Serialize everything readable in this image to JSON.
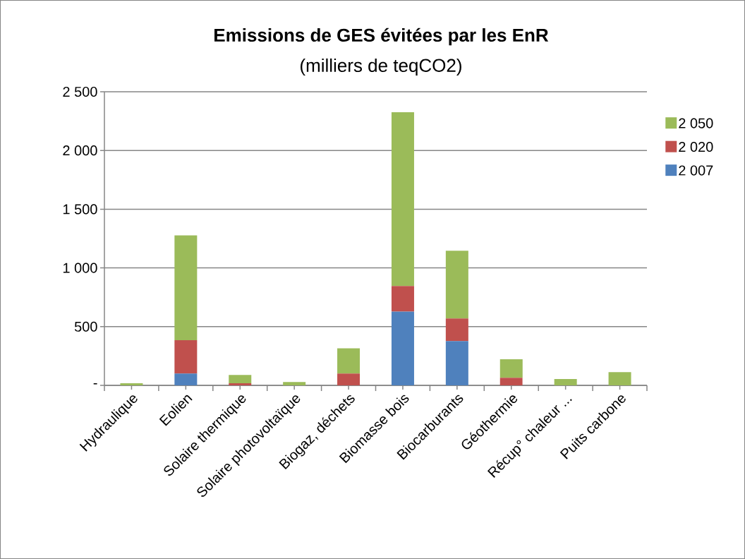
{
  "chart_data": {
    "type": "bar",
    "stacked": true,
    "title": "Emissions de GES évitées par les EnR",
    "subtitle": "(milliers de teqCO2)",
    "categories": [
      "Hydraulique",
      "Eolien",
      "Solaire thermique",
      "Solaire photovoltaïque",
      "Biogaz, déchets",
      "Biomasse bois",
      "Biocarburants",
      "Géothermie",
      "Récup° chaleur ...",
      "Puits carbone"
    ],
    "series": [
      {
        "name": "2 007",
        "color": "#4f81bd",
        "values": [
          0,
          100,
          0,
          0,
          0,
          628,
          377,
          0,
          0,
          0
        ]
      },
      {
        "name": "2 020",
        "color": "#c0504d",
        "values": [
          0,
          285,
          18,
          0,
          100,
          218,
          192,
          64,
          0,
          0
        ]
      },
      {
        "name": "2 050",
        "color": "#9bbb59",
        "values": [
          18,
          892,
          70,
          28,
          216,
          1480,
          578,
          158,
          54,
          112
        ]
      }
    ],
    "ylim": [
      0,
      2500
    ],
    "yticks": [
      {
        "value": 0,
        "label": "-"
      },
      500,
      {
        "value": 1000,
        "label": "1 000"
      },
      {
        "value": 1500,
        "label": "1 500"
      },
      {
        "value": 2000,
        "label": "2 000"
      },
      {
        "value": 2500,
        "label": "2 500"
      }
    ],
    "grid": "y",
    "legend": "right"
  }
}
